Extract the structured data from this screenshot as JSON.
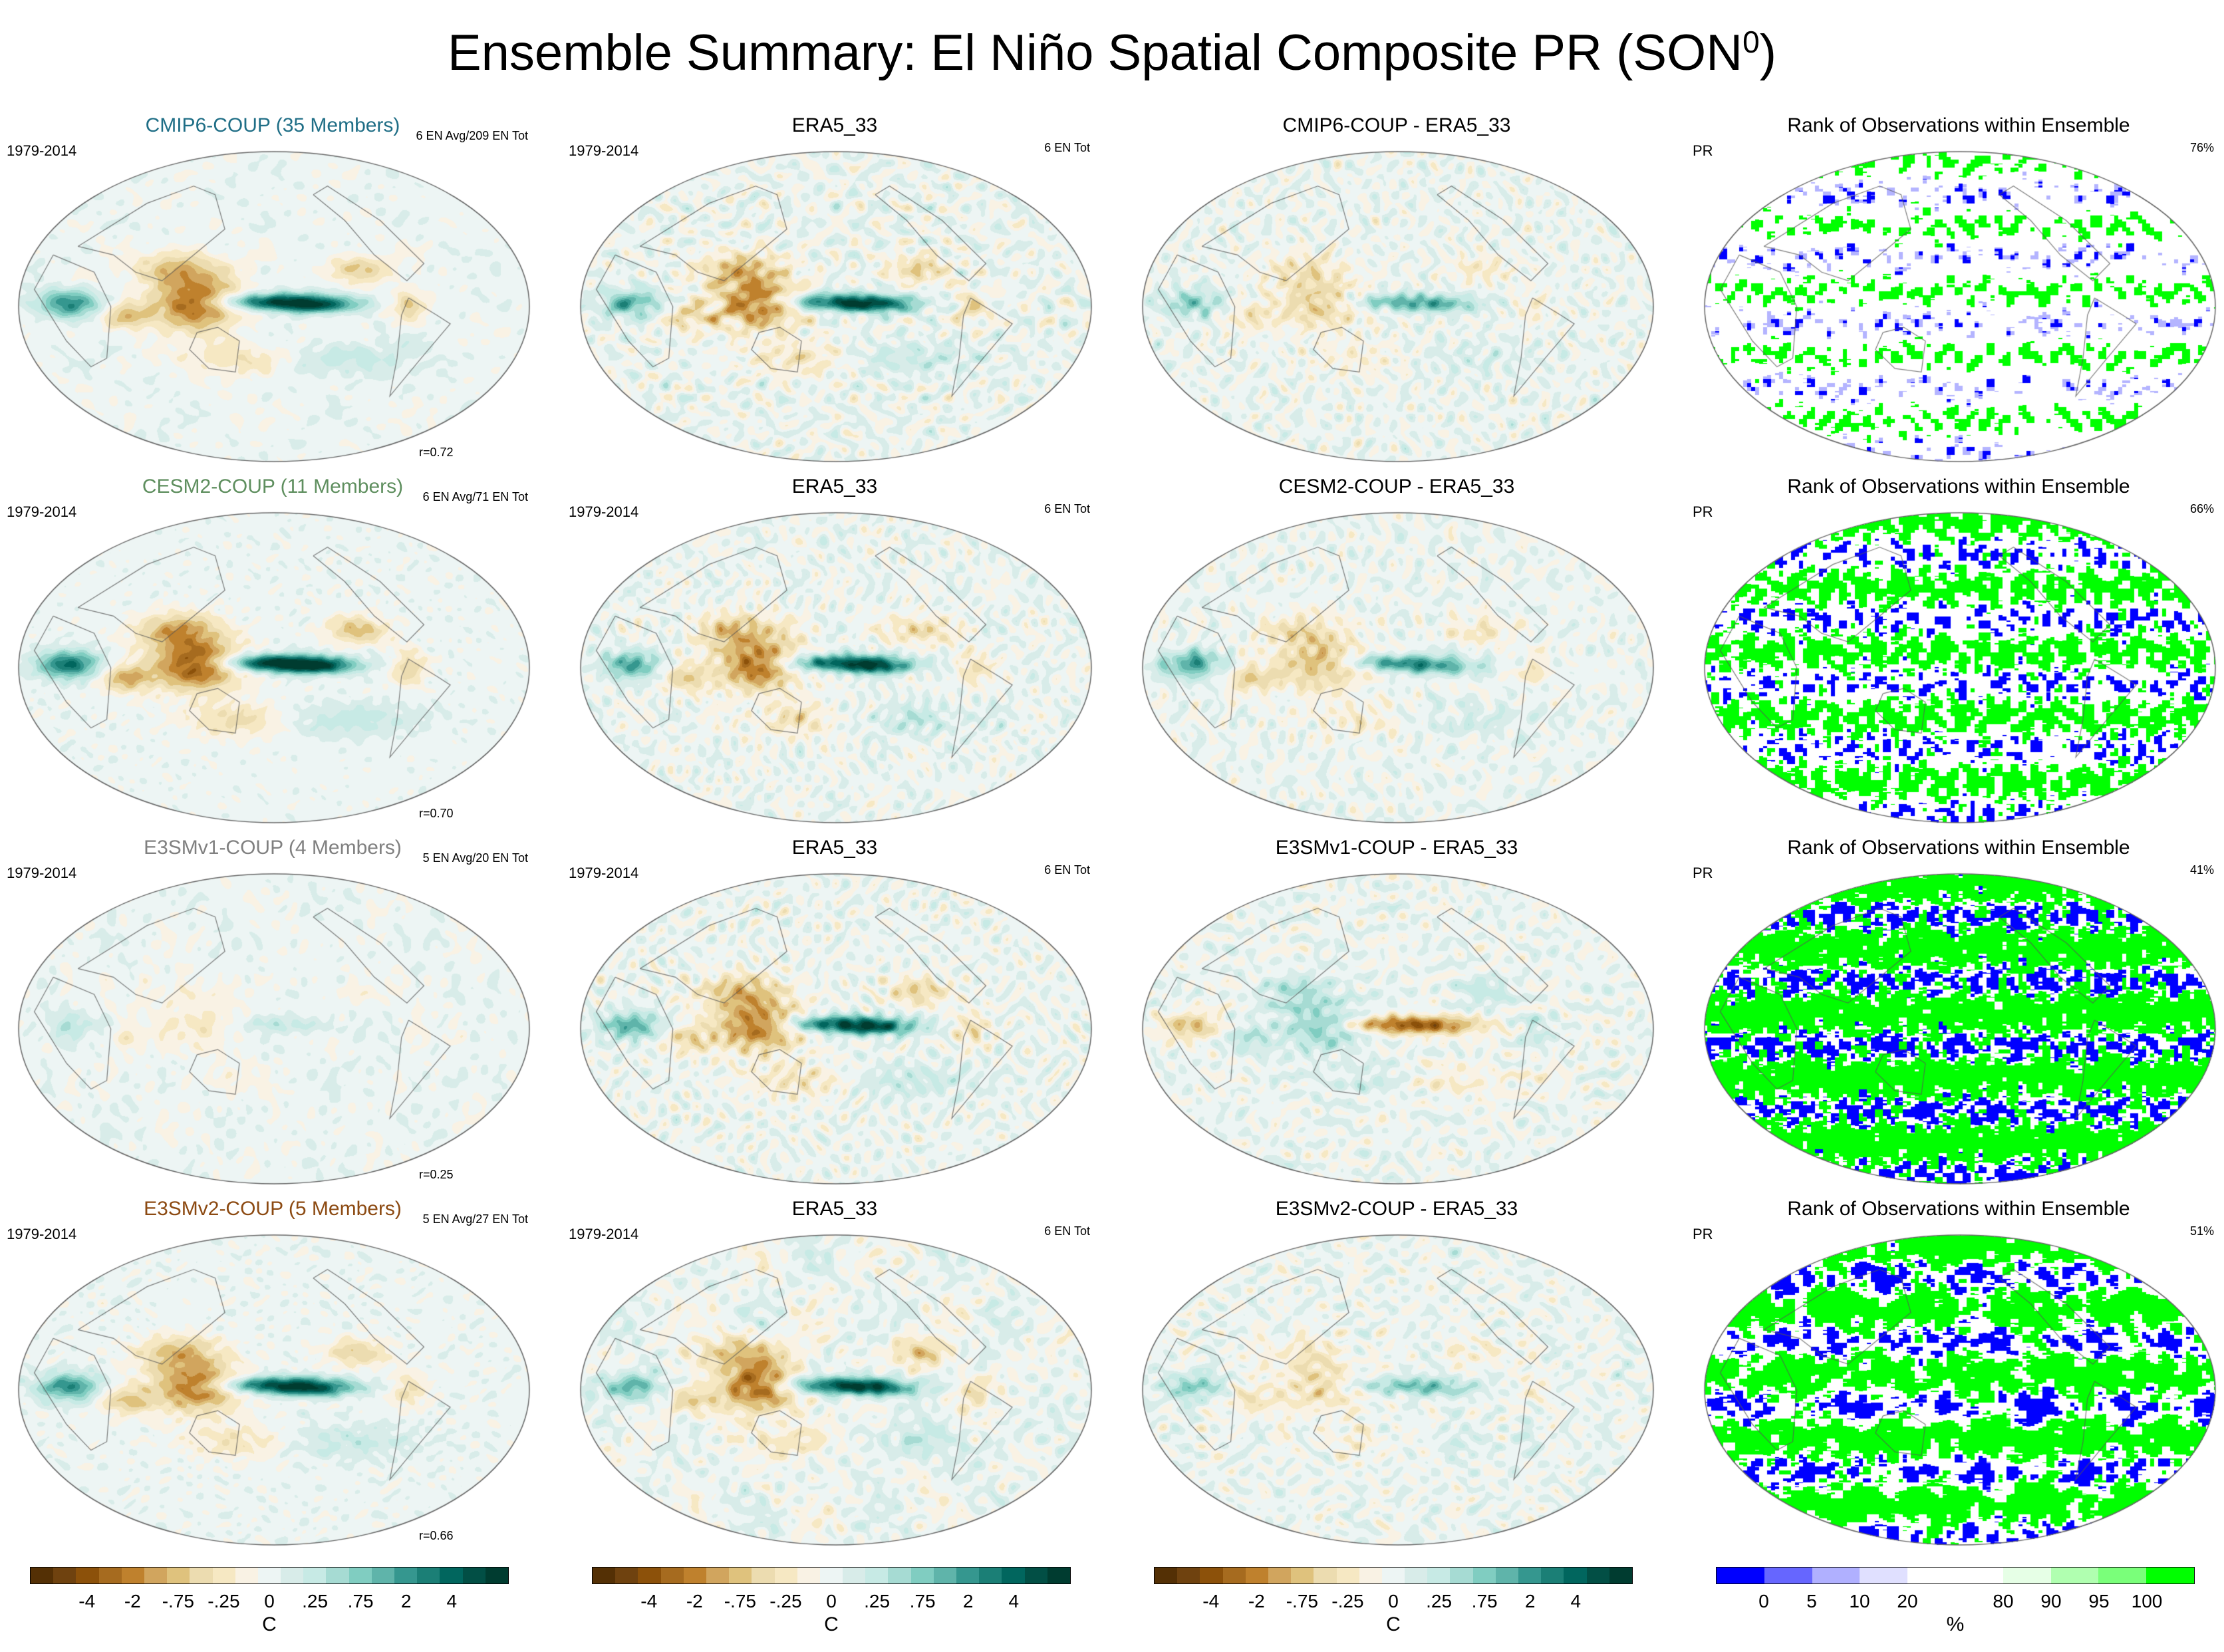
{
  "title": {
    "text": "Ensemble Summary: El Niño Spatial Composite PR (SON",
    "sup": "0",
    "close": ")"
  },
  "rows": [
    {
      "model": {
        "title": "CMIP6-COUP (35 Members)",
        "color": "#1f6e86",
        "period": "1979-2014",
        "count": "6 EN Avg/209 EN Tot",
        "r": "r=0.72"
      },
      "obs": {
        "title": "ERA5_33",
        "period": "1979-2014",
        "count": "6 EN Tot"
      },
      "diff": {
        "title": "CMIP6-COUP - ERA5_33"
      },
      "rank": {
        "title": "Rank of Observations within Ensemble",
        "var": "PR",
        "pct": "76%"
      }
    },
    {
      "model": {
        "title": "CESM2-COUP (11 Members)",
        "color": "#5f8f5f",
        "period": "1979-2014",
        "count": "6 EN Avg/71 EN Tot",
        "r": "r=0.70"
      },
      "obs": {
        "title": "ERA5_33",
        "period": "1979-2014",
        "count": "6 EN Tot"
      },
      "diff": {
        "title": "CESM2-COUP - ERA5_33"
      },
      "rank": {
        "title": "Rank of Observations within Ensemble",
        "var": "PR",
        "pct": "66%"
      }
    },
    {
      "model": {
        "title": "E3SMv1-COUP (4 Members)",
        "color": "#808080",
        "period": "1979-2014",
        "count": "5 EN Avg/20 EN Tot",
        "r": "r=0.25"
      },
      "obs": {
        "title": "ERA5_33",
        "period": "1979-2014",
        "count": "6 EN Tot"
      },
      "diff": {
        "title": "E3SMv1-COUP - ERA5_33"
      },
      "rank": {
        "title": "Rank of Observations within Ensemble",
        "var": "PR",
        "pct": "41%"
      }
    },
    {
      "model": {
        "title": "E3SMv2-COUP (5 Members)",
        "color": "#8c4a12",
        "period": "1979-2014",
        "count": "5 EN Avg/27 EN Tot",
        "r": "r=0.66"
      },
      "obs": {
        "title": "ERA5_33",
        "period": "1979-2014",
        "count": "6 EN Tot"
      },
      "diff": {
        "title": "E3SMv2-COUP - ERA5_33"
      },
      "rank": {
        "title": "Rank of Observations within Ensemble",
        "var": "PR",
        "pct": "51%"
      }
    }
  ],
  "colorbars": {
    "brbg": {
      "colors": [
        "#543005",
        "#6f420f",
        "#8c510a",
        "#a66b1f",
        "#bf812d",
        "#d1a55e",
        "#dfc27d",
        "#ecdcb0",
        "#f6e8c3",
        "#f9f2e4",
        "#edf5f4",
        "#d8ece9",
        "#c7eae5",
        "#a6dbd3",
        "#80cdc1",
        "#5fb4aa",
        "#35978f",
        "#1b7f76",
        "#01665e",
        "#024f45",
        "#003c30"
      ],
      "ticks": [
        "-4",
        "-2",
        "-.75",
        "-.25",
        "0",
        ".25",
        ".75",
        "2",
        "4"
      ],
      "unit": "C"
    },
    "rank": {
      "colors": [
        "#0000ff",
        "#6666ff",
        "#b0b0ff",
        "#e0e0ff",
        "#ffffff",
        "#ffffff",
        "#e6ffe6",
        "#b0ffb0",
        "#7aff7a",
        "#00ff00"
      ],
      "ticks": [
        "0",
        "5",
        "10",
        "20",
        "80",
        "90",
        "95",
        "100"
      ],
      "unit": "%"
    },
    "map_palette": {
      "dry": "#8c510a",
      "wet": "#01665e",
      "neutral": "#f5f5f0",
      "coast": "#555555",
      "rank_low": "#0000ff",
      "rank_high": "#00ff00"
    }
  }
}
